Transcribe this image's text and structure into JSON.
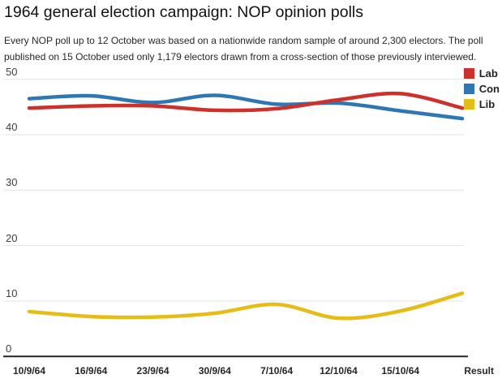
{
  "header": {
    "title": "1964 general election campaign: NOP opinion polls",
    "subtitle_lines": [
      "Every NOP poll up to 12 October was based on a nationwide random sample of around 2,300 electors. The poll",
      "published on 15 October used only 1,179 electors drawn from a cross-section of those previously interviewed."
    ]
  },
  "chart_data": {
    "type": "line",
    "title": "1964 general election campaign: NOP opinion polls",
    "categories": [
      "10/9/64",
      "16/9/64",
      "23/9/64",
      "30/9/64",
      "7/10/64",
      "12/10/64",
      "15/10/64",
      "Result"
    ],
    "series": [
      {
        "name": "Lab",
        "color": "#cc312b",
        "values": [
          44.8,
          45.2,
          45.2,
          44.4,
          44.7,
          46.3,
          47.4,
          44.8
        ]
      },
      {
        "name": "Con",
        "color": "#2f77b2",
        "values": [
          46.5,
          47.0,
          45.8,
          47.1,
          45.5,
          45.7,
          44.3,
          42.9
        ]
      },
      {
        "name": "Lib",
        "color": "#e6bd17",
        "values": [
          8.1,
          7.2,
          7.1,
          7.8,
          9.4,
          6.9,
          8.2,
          11.4
        ]
      }
    ],
    "ylim": [
      0,
      50
    ],
    "yticks": [
      0,
      10,
      20,
      30,
      40,
      50
    ],
    "grid": true,
    "legend_position": "top-right",
    "line_width": 4.5,
    "colors": {
      "grid": "#e3e3e3",
      "axis": "#262626",
      "tick_label": "#404040"
    }
  },
  "legend": {
    "items": [
      {
        "label": "Lab",
        "color": "#cc312b"
      },
      {
        "label": "Con",
        "color": "#2f77b2"
      },
      {
        "label": "Lib",
        "color": "#e6bd17"
      }
    ]
  }
}
